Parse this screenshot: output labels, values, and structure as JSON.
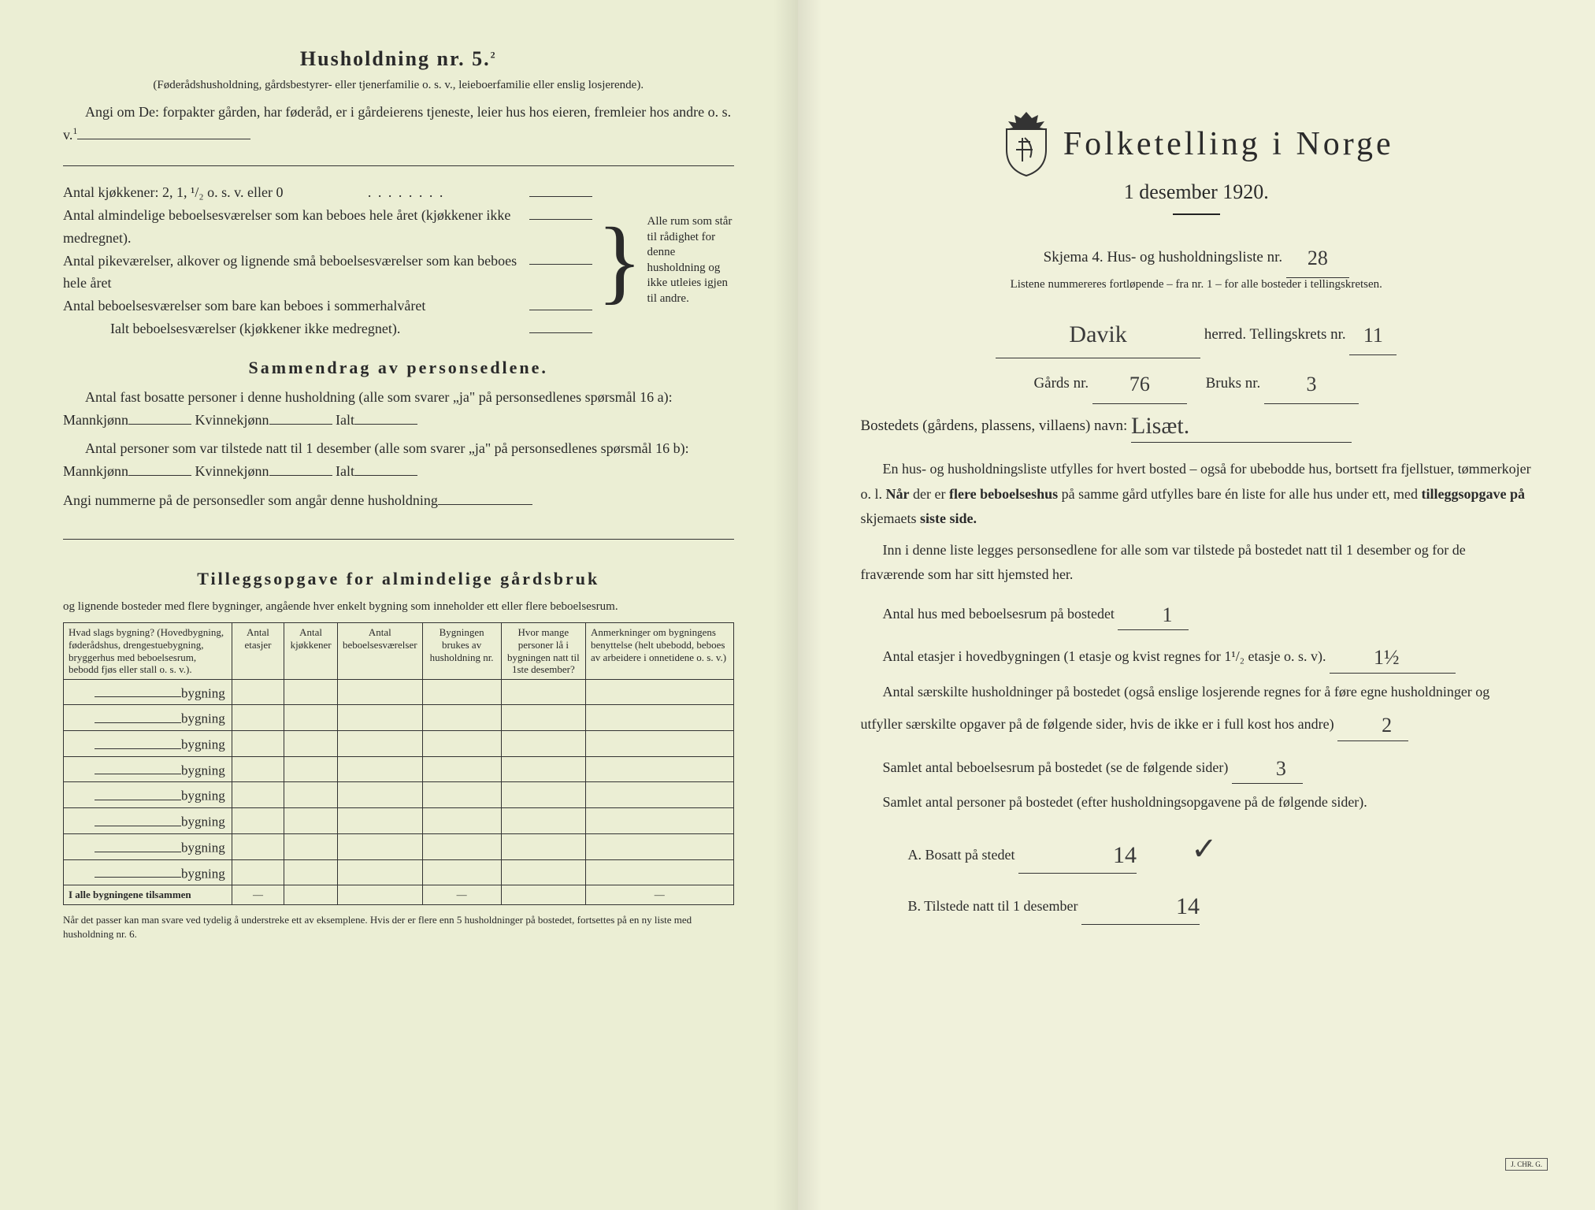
{
  "colors": {
    "paper": "#eef0d8",
    "ink": "#2a2a2a",
    "pencil": "#3a3a3a"
  },
  "left": {
    "title": "Husholdning nr. 5.",
    "title_sup": "2",
    "subtitle": "(Føderådshusholdning, gårdsbestyrer- eller tjenerfamilie o. s. v., leieboerfamilie eller enslig losjerende).",
    "angi_om": "Angi om De:  forpakter gården, har føderåd, er i gårdeierens tjeneste, leier hus hos eieren, fremleier hos andre o. s. v.",
    "angi_sup": "1",
    "rows": [
      "Antal kjøkkener: 2, 1, ¹/₂ o. s. v. eller 0",
      "Antal almindelige beboelsesværelser som kan beboes hele året (kjøkkener ikke medregnet).",
      "Antal pikeværelser, alkover og lignende små beboelsesværelser som kan beboes hele året",
      "Antal beboelsesværelser som bare kan beboes i sommerhalvåret",
      "Ialt beboelsesværelser (kjøkkener ikke medregnet)."
    ],
    "brace_text": "Alle rum som står til rådighet for denne husholdning og ikke utleies igjen til andre.",
    "sammendrag_head": "Sammendrag av personsedlene.",
    "sammendrag_p1": "Antal fast bosatte personer i denne husholdning (alle som svarer „ja\" på personsedlenes spørsmål 16 a): Mannkjønn",
    "sammendrag_p1_mid": "Kvinnekjønn",
    "sammendrag_p1_end": "Ialt",
    "sammendrag_p2": "Antal personer som var tilstede natt til 1 desember (alle som svarer „ja\" på personsedlenes spørsmål 16 b): Mannkjønn",
    "angi_nummer": "Angi nummerne på de personsedler som angår denne husholdning",
    "tillegg_head": "Tilleggsopgave for almindelige gårdsbruk",
    "tillegg_sub": "og lignende bosteder med flere bygninger, angående hver enkelt bygning som inneholder ett eller flere beboelsesrum.",
    "table": {
      "headers": [
        "Hvad slags bygning?\n(Hovedbygning, føderådshus, drengestuebygning, bryggerhus med beboelsesrum, bebodd fjøs eller stall o. s. v.).",
        "Antal etasjer",
        "Antal kjøkkener",
        "Antal beboelsesværelser",
        "Bygningen brukes av husholdning nr.",
        "Hvor mange personer lå i bygningen natt til 1ste desember?",
        "Anmerkninger om bygningens benyttelse (helt ubebodd, beboes av arbeidere i onnetidene o. s. v.)"
      ],
      "row_label": "bygning",
      "row_count": 8,
      "footer": "I alle bygningene tilsammen"
    },
    "footnote": "Når det passer kan man svare ved tydelig å understreke ett av eksemplene.\nHvis der er flere enn 5 husholdninger på bostedet, fortsettes på en ny liste med husholdning nr. 6."
  },
  "right": {
    "main_title": "Folketelling i Norge",
    "date": "1 desember 1920.",
    "skjema": "Skjema 4.   Hus- og husholdningsliste nr.",
    "liste_nr": "28",
    "listene": "Listene nummereres fortløpende – fra nr. 1 – for alle bosteder i tellingskretsen.",
    "herred_value": "Davik",
    "herred_label": "herred.  Tellingskrets nr.",
    "krets_nr": "11",
    "gards_label": "Gårds nr.",
    "gards_nr": "76",
    "bruks_label": "Bruks nr.",
    "bruks_nr": "3",
    "bosted_label": "Bostedets (gårdens, plassens, villaens) navn:",
    "bosted_value": "Lisæt.",
    "p1": "En hus- og husholdningsliste utfylles for hvert bosted – også for ubebodde hus, bortsett fra fjellstuer, tømmerkojer o. l.  Når der er flere beboelseshus på samme gård utfylles bare én liste for alle hus under ett, med tilleggsopgave på skjemaets siste side.",
    "p2": "Inn i denne liste legges personsedlene for alle som var tilstede på bostedet natt til 1 desember og for de fraværende som har sitt hjemsted her.",
    "antal_hus": "Antal hus med beboelsesrum på bostedet",
    "antal_hus_val": "1",
    "antal_etasjer": "Antal etasjer i hovedbygningen (1 etasje og kvist regnes for 1¹/₂ etasje o. s. v).",
    "antal_etasjer_val": "1½",
    "antal_hushold": "Antal særskilte husholdninger på bostedet (også enslige losjerende regnes for å føre egne husholdninger og utfyller særskilte opgaver på de følgende sider, hvis de ikke er i full kost hos andre)",
    "antal_hushold_val": "2",
    "samlet_beboelse": "Samlet antal beboelsesrum på bostedet (se de følgende sider)",
    "samlet_beboelse_val": "3",
    "samlet_personer": "Samlet antal personer på bostedet (efter husholdningsopgavene på de følgende sider).",
    "a_label": "A.  Bosatt på stedet",
    "a_val": "14",
    "b_label": "B.  Tilstede natt til 1 desember",
    "b_val": "14",
    "checkmark": "✓"
  }
}
